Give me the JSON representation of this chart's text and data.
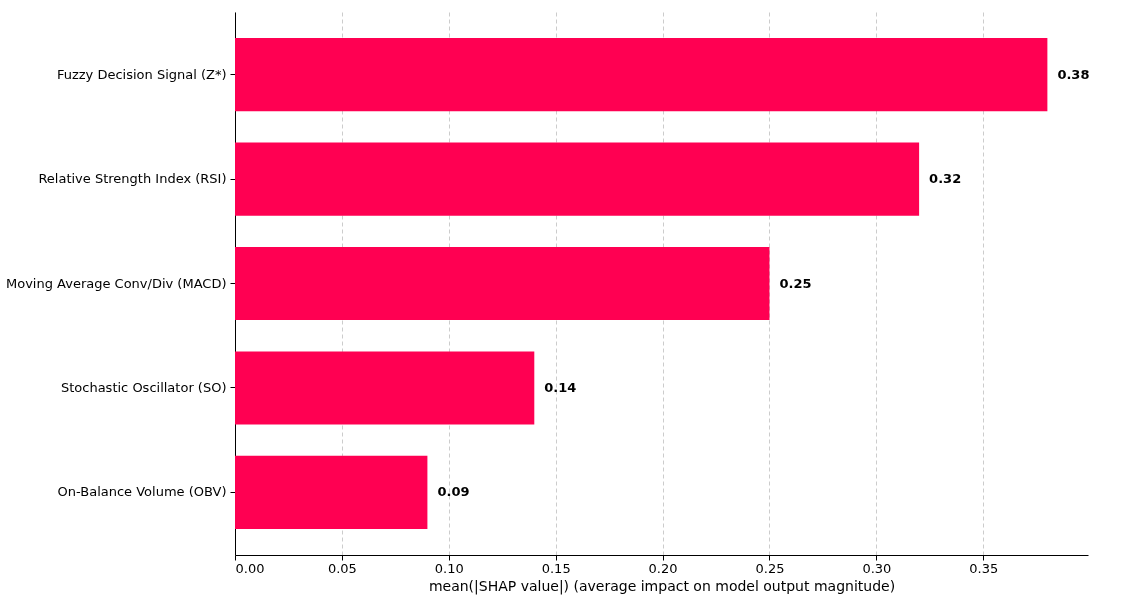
{
  "chart_data": {
    "type": "bar",
    "orientation": "horizontal",
    "categories": [
      "Fuzzy Decision Signal (Z*)",
      "Relative Strength Index (RSI)",
      "Moving Average Conv/Div (MACD)",
      "Stochastic Oscillator (SO)",
      "On-Balance Volume (OBV)"
    ],
    "values": [
      0.38,
      0.32,
      0.25,
      0.14,
      0.09
    ],
    "color": "#ff0052",
    "xlabel": "mean(|SHAP value|) (average impact on model output magnitude)",
    "xlim": [
      0,
      0.399
    ],
    "xticks": [
      {
        "value": 0,
        "label": "0.00"
      },
      {
        "value": 0.05,
        "label": "0.05"
      },
      {
        "value": 0.1,
        "label": "0.10"
      },
      {
        "value": 0.15,
        "label": "0.15"
      },
      {
        "value": 0.2,
        "label": "0.20"
      },
      {
        "value": 0.25,
        "label": "0.25"
      },
      {
        "value": 0.3,
        "label": "0.30"
      },
      {
        "value": 0.35,
        "label": "0.35"
      }
    ],
    "grid": "x",
    "data_labels": true
  }
}
